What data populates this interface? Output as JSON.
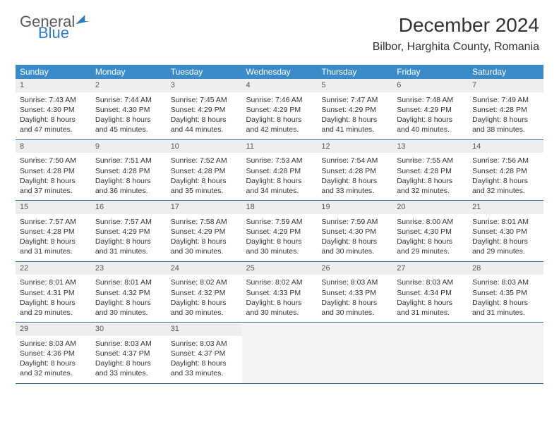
{
  "brand": {
    "line1": "General",
    "line2": "Blue"
  },
  "title": "December 2024",
  "location": "Bilbor, Harghita County, Romania",
  "colors": {
    "header_bg": "#3b8bc9",
    "header_text": "#ffffff",
    "daynum_bg": "#eeeeee",
    "row_border": "#3b6b9a",
    "brand_gray": "#5a5a5a",
    "brand_blue": "#2f7bbf"
  },
  "dow": [
    "Sunday",
    "Monday",
    "Tuesday",
    "Wednesday",
    "Thursday",
    "Friday",
    "Saturday"
  ],
  "weeks": [
    [
      {
        "n": "1",
        "l1": "Sunrise: 7:43 AM",
        "l2": "Sunset: 4:30 PM",
        "l3": "Daylight: 8 hours",
        "l4": "and 47 minutes."
      },
      {
        "n": "2",
        "l1": "Sunrise: 7:44 AM",
        "l2": "Sunset: 4:30 PM",
        "l3": "Daylight: 8 hours",
        "l4": "and 45 minutes."
      },
      {
        "n": "3",
        "l1": "Sunrise: 7:45 AM",
        "l2": "Sunset: 4:29 PM",
        "l3": "Daylight: 8 hours",
        "l4": "and 44 minutes."
      },
      {
        "n": "4",
        "l1": "Sunrise: 7:46 AM",
        "l2": "Sunset: 4:29 PM",
        "l3": "Daylight: 8 hours",
        "l4": "and 42 minutes."
      },
      {
        "n": "5",
        "l1": "Sunrise: 7:47 AM",
        "l2": "Sunset: 4:29 PM",
        "l3": "Daylight: 8 hours",
        "l4": "and 41 minutes."
      },
      {
        "n": "6",
        "l1": "Sunrise: 7:48 AM",
        "l2": "Sunset: 4:29 PM",
        "l3": "Daylight: 8 hours",
        "l4": "and 40 minutes."
      },
      {
        "n": "7",
        "l1": "Sunrise: 7:49 AM",
        "l2": "Sunset: 4:28 PM",
        "l3": "Daylight: 8 hours",
        "l4": "and 38 minutes."
      }
    ],
    [
      {
        "n": "8",
        "l1": "Sunrise: 7:50 AM",
        "l2": "Sunset: 4:28 PM",
        "l3": "Daylight: 8 hours",
        "l4": "and 37 minutes."
      },
      {
        "n": "9",
        "l1": "Sunrise: 7:51 AM",
        "l2": "Sunset: 4:28 PM",
        "l3": "Daylight: 8 hours",
        "l4": "and 36 minutes."
      },
      {
        "n": "10",
        "l1": "Sunrise: 7:52 AM",
        "l2": "Sunset: 4:28 PM",
        "l3": "Daylight: 8 hours",
        "l4": "and 35 minutes."
      },
      {
        "n": "11",
        "l1": "Sunrise: 7:53 AM",
        "l2": "Sunset: 4:28 PM",
        "l3": "Daylight: 8 hours",
        "l4": "and 34 minutes."
      },
      {
        "n": "12",
        "l1": "Sunrise: 7:54 AM",
        "l2": "Sunset: 4:28 PM",
        "l3": "Daylight: 8 hours",
        "l4": "and 33 minutes."
      },
      {
        "n": "13",
        "l1": "Sunrise: 7:55 AM",
        "l2": "Sunset: 4:28 PM",
        "l3": "Daylight: 8 hours",
        "l4": "and 32 minutes."
      },
      {
        "n": "14",
        "l1": "Sunrise: 7:56 AM",
        "l2": "Sunset: 4:28 PM",
        "l3": "Daylight: 8 hours",
        "l4": "and 32 minutes."
      }
    ],
    [
      {
        "n": "15",
        "l1": "Sunrise: 7:57 AM",
        "l2": "Sunset: 4:28 PM",
        "l3": "Daylight: 8 hours",
        "l4": "and 31 minutes."
      },
      {
        "n": "16",
        "l1": "Sunrise: 7:57 AM",
        "l2": "Sunset: 4:29 PM",
        "l3": "Daylight: 8 hours",
        "l4": "and 31 minutes."
      },
      {
        "n": "17",
        "l1": "Sunrise: 7:58 AM",
        "l2": "Sunset: 4:29 PM",
        "l3": "Daylight: 8 hours",
        "l4": "and 30 minutes."
      },
      {
        "n": "18",
        "l1": "Sunrise: 7:59 AM",
        "l2": "Sunset: 4:29 PM",
        "l3": "Daylight: 8 hours",
        "l4": "and 30 minutes."
      },
      {
        "n": "19",
        "l1": "Sunrise: 7:59 AM",
        "l2": "Sunset: 4:30 PM",
        "l3": "Daylight: 8 hours",
        "l4": "and 30 minutes."
      },
      {
        "n": "20",
        "l1": "Sunrise: 8:00 AM",
        "l2": "Sunset: 4:30 PM",
        "l3": "Daylight: 8 hours",
        "l4": "and 29 minutes."
      },
      {
        "n": "21",
        "l1": "Sunrise: 8:01 AM",
        "l2": "Sunset: 4:30 PM",
        "l3": "Daylight: 8 hours",
        "l4": "and 29 minutes."
      }
    ],
    [
      {
        "n": "22",
        "l1": "Sunrise: 8:01 AM",
        "l2": "Sunset: 4:31 PM",
        "l3": "Daylight: 8 hours",
        "l4": "and 29 minutes."
      },
      {
        "n": "23",
        "l1": "Sunrise: 8:01 AM",
        "l2": "Sunset: 4:32 PM",
        "l3": "Daylight: 8 hours",
        "l4": "and 30 minutes."
      },
      {
        "n": "24",
        "l1": "Sunrise: 8:02 AM",
        "l2": "Sunset: 4:32 PM",
        "l3": "Daylight: 8 hours",
        "l4": "and 30 minutes."
      },
      {
        "n": "25",
        "l1": "Sunrise: 8:02 AM",
        "l2": "Sunset: 4:33 PM",
        "l3": "Daylight: 8 hours",
        "l4": "and 30 minutes."
      },
      {
        "n": "26",
        "l1": "Sunrise: 8:03 AM",
        "l2": "Sunset: 4:33 PM",
        "l3": "Daylight: 8 hours",
        "l4": "and 30 minutes."
      },
      {
        "n": "27",
        "l1": "Sunrise: 8:03 AM",
        "l2": "Sunset: 4:34 PM",
        "l3": "Daylight: 8 hours",
        "l4": "and 31 minutes."
      },
      {
        "n": "28",
        "l1": "Sunrise: 8:03 AM",
        "l2": "Sunset: 4:35 PM",
        "l3": "Daylight: 8 hours",
        "l4": "and 31 minutes."
      }
    ],
    [
      {
        "n": "29",
        "l1": "Sunrise: 8:03 AM",
        "l2": "Sunset: 4:36 PM",
        "l3": "Daylight: 8 hours",
        "l4": "and 32 minutes."
      },
      {
        "n": "30",
        "l1": "Sunrise: 8:03 AM",
        "l2": "Sunset: 4:37 PM",
        "l3": "Daylight: 8 hours",
        "l4": "and 33 minutes."
      },
      {
        "n": "31",
        "l1": "Sunrise: 8:03 AM",
        "l2": "Sunset: 4:37 PM",
        "l3": "Daylight: 8 hours",
        "l4": "and 33 minutes."
      },
      null,
      null,
      null,
      null
    ]
  ]
}
